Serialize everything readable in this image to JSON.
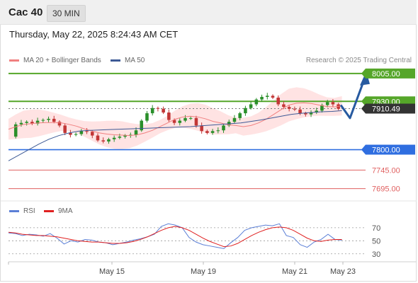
{
  "header": {
    "symbol": "Cac 40",
    "timeframe": "30 MIN",
    "datetime": "Thursday, May 22, 2025 8:24:43 AM CET"
  },
  "legend": {
    "ma20_label": "MA 20 + Bollinger Bands",
    "ma50_label": "MA 50",
    "rsi_label": "RSI",
    "rsi_ma_label": "9MA",
    "credit": "Research © 2025 Trading Central"
  },
  "colors": {
    "resistance": "#55a629",
    "support": "#2f6ee0",
    "target_down": "#e06060",
    "ma20": "#f08080",
    "ma50": "#3d5a96",
    "bollinger_fill": "#ffe3e3",
    "candle_up": "#2a8f2a",
    "candle_down": "#c23636",
    "rsi": "#5b7fd6",
    "rsi_ma": "#e02020",
    "forecast_arrow": "#275aa0",
    "price_tag": "#333333"
  },
  "chart_data": [
    {
      "type": "candlestick",
      "title": "",
      "x_ticks": [
        "May 15",
        "May 19",
        "May 21",
        "May 23"
      ],
      "price_levels": [
        {
          "value": 8005.0,
          "label": "8005.00",
          "kind": "resistance"
        },
        {
          "value": 7930.0,
          "label": "7930.00",
          "kind": "resistance"
        },
        {
          "value": 7910.49,
          "label": "7910.49",
          "kind": "last-price"
        },
        {
          "value": 7800.0,
          "label": "7800.00",
          "kind": "pivot-support"
        },
        {
          "value": 7745.0,
          "label": "7745.00",
          "kind": "support"
        },
        {
          "value": 7695.0,
          "label": "7695.00",
          "kind": "support"
        }
      ],
      "price_path": [
        7835,
        7868,
        7872,
        7875,
        7870,
        7878,
        7880,
        7883,
        7875,
        7865,
        7845,
        7840,
        7842,
        7850,
        7848,
        7838,
        7825,
        7822,
        7828,
        7832,
        7835,
        7838,
        7840,
        7852,
        7878,
        7898,
        7912,
        7910,
        7900,
        7880,
        7872,
        7878,
        7885,
        7885,
        7865,
        7850,
        7845,
        7850,
        7852,
        7865,
        7875,
        7885,
        7898,
        7912,
        7922,
        7935,
        7942,
        7945,
        7940,
        7922,
        7915,
        7910,
        7908,
        7898,
        7895,
        7900,
        7905,
        7920,
        7928,
        7922,
        7910
      ],
      "ma20_path": [
        7855,
        7862,
        7868,
        7870,
        7872,
        7873,
        7873,
        7872,
        7868,
        7863,
        7856,
        7850,
        7845,
        7842,
        7840,
        7839,
        7838,
        7840,
        7845,
        7852,
        7862,
        7872,
        7882,
        7888,
        7890,
        7888,
        7883,
        7876,
        7872,
        7867,
        7865,
        7862,
        7865,
        7872,
        7882,
        7895,
        7908,
        7920,
        7925,
        7926,
        7924,
        7920,
        7916,
        7915,
        7918
      ],
      "ma50_path": [
        7770,
        7785,
        7800,
        7815,
        7828,
        7838,
        7845,
        7850,
        7852,
        7853,
        7854,
        7855,
        7856,
        7857,
        7858,
        7859,
        7860,
        7861,
        7862,
        7864,
        7866,
        7868,
        7870,
        7872,
        7876,
        7880,
        7885,
        7890,
        7895,
        7898,
        7900,
        7902,
        7903,
        7905
      ],
      "forecast_path": [
        7920,
        7885,
        7988
      ]
    },
    {
      "type": "line",
      "title": "",
      "series": [
        {
          "name": "RSI",
          "values": [
            62,
            61,
            58,
            60,
            59,
            57,
            61,
            54,
            45,
            50,
            48,
            52,
            51,
            48,
            47,
            44,
            46,
            48,
            51,
            53,
            56,
            60,
            72,
            76,
            74,
            70,
            55,
            48,
            44,
            42,
            40,
            38,
            47,
            55,
            66,
            70,
            72,
            74,
            73,
            76,
            58,
            55,
            44,
            40,
            48,
            52,
            60,
            52,
            51
          ]
        },
        {
          "name": "9MA",
          "values": [
            63,
            62,
            60,
            59,
            58,
            58,
            57,
            56,
            54,
            52,
            50,
            49,
            48,
            48,
            47,
            46,
            46,
            47,
            49,
            52,
            56,
            61,
            66,
            70,
            72,
            70,
            66,
            60,
            54,
            49,
            45,
            41,
            42,
            46,
            52,
            58,
            63,
            67,
            70,
            71,
            70,
            66,
            60,
            54,
            50,
            49,
            51,
            52,
            52
          ]
        }
      ],
      "ylim": [
        20,
        85
      ],
      "y_ticks": [
        70,
        50,
        30
      ]
    }
  ]
}
